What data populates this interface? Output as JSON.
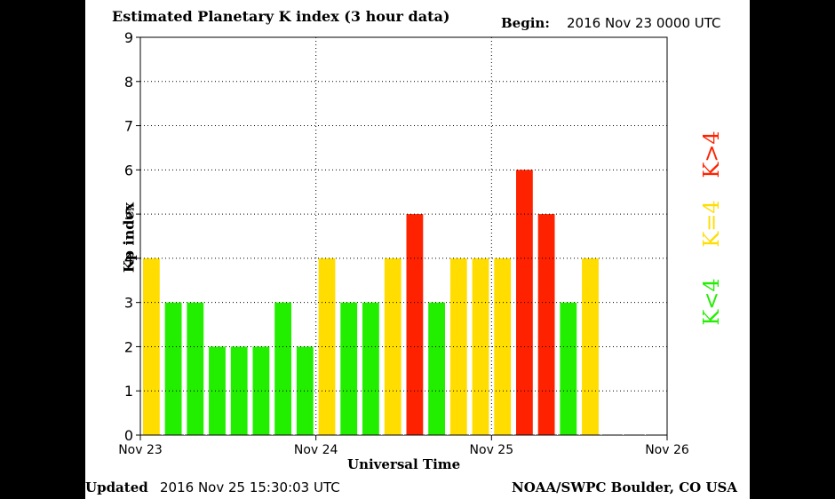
{
  "header": {
    "title": "Estimated Planetary K index (3 hour data)",
    "begin_label": "Begin:",
    "begin_value": "2016 Nov 23 0000 UTC"
  },
  "footer": {
    "updated_label": "Updated",
    "updated_value": "2016 Nov 25 15:30:03 UTC",
    "credit": "NOAA/SWPC Boulder, CO USA"
  },
  "legend": [
    {
      "label": "K>4",
      "color": "#ff2200"
    },
    {
      "label": "K=4",
      "color": "#ffdd00"
    },
    {
      "label": "K<4",
      "color": "#22ee00"
    }
  ],
  "chart_data": {
    "type": "bar",
    "title": "Estimated Planetary K index (3 hour data)",
    "xlabel": "Universal Time",
    "ylabel": "Kp index",
    "ylim": [
      0,
      9
    ],
    "yticks": [
      0,
      1,
      2,
      3,
      4,
      5,
      6,
      7,
      8,
      9
    ],
    "xticks": [
      "Nov 23",
      "Nov 24",
      "Nov 25",
      "Nov 26"
    ],
    "bar_interval_hours": 3,
    "start": "2016 Nov 23 0000 UTC",
    "values": [
      4,
      3,
      3,
      2,
      2,
      2,
      3,
      2,
      4,
      3,
      3,
      4,
      5,
      3,
      4,
      4,
      4,
      6,
      5,
      3,
      4
    ],
    "color_rule": {
      "below_4": "#22ee00",
      "equal_4": "#ffdd00",
      "above_4": "#ff2200"
    },
    "grid": "dotted",
    "legend_position": "right"
  }
}
